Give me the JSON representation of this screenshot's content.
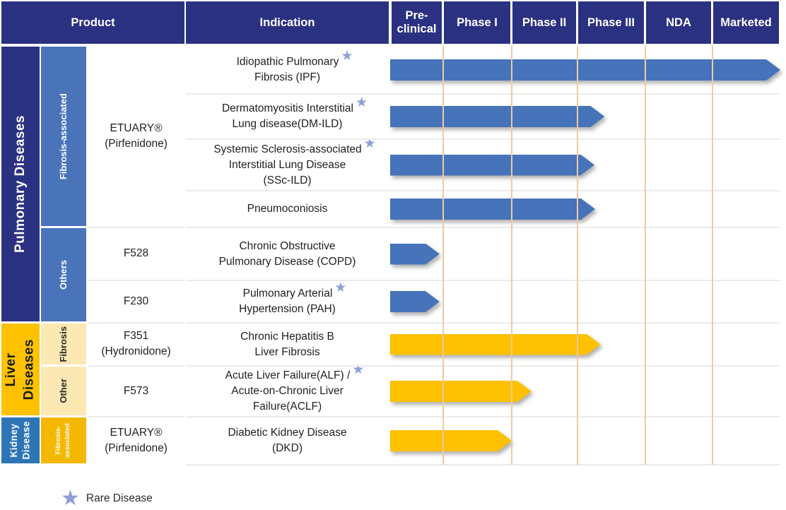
{
  "header": {
    "product_label": "Product",
    "indication_label": "Indication",
    "phases": [
      "Pre-\nclinical",
      "Phase I",
      "Phase II",
      "Phase III",
      "NDA",
      "Marketed"
    ]
  },
  "groups": [
    {
      "label": "Pulmonary Diseases",
      "rows": [
        0,
        5
      ],
      "bg": "#2B3181",
      "fg": "#FFFFFF",
      "small": false
    },
    {
      "label": "Liver\nDiseases",
      "rows": [
        6,
        7
      ],
      "bg": "#FCC200",
      "fg": "#1a1a1a",
      "small": false
    },
    {
      "label": "Kidney\nDisease",
      "rows": [
        8,
        8
      ],
      "bg": "#2E75B6",
      "fg": "#FFFFFF",
      "small": true
    }
  ],
  "subgroups": [
    {
      "label": "Fibrosis-associated",
      "rows": [
        0,
        3
      ],
      "bg": "#4A74BA",
      "fg": "#FFFFFF",
      "small": false
    },
    {
      "label": "Others",
      "rows": [
        4,
        5
      ],
      "bg": "#4A74BA",
      "fg": "#FFFFFF",
      "small": false
    },
    {
      "label": "Fibrosis",
      "rows": [
        6,
        6
      ],
      "bg": "#FBE8B3",
      "fg": "#2a2a2a",
      "small": false
    },
    {
      "label": "Other",
      "rows": [
        7,
        7
      ],
      "bg": "#FBE8B3",
      "fg": "#2a2a2a",
      "small": false
    },
    {
      "label": "Fibrosis-\nassociated",
      "rows": [
        8,
        8
      ],
      "bg": "#F5B800",
      "fg": "#FFFFFF",
      "small": true
    }
  ],
  "products": [
    {
      "label": "ETUARY®\n(Pirfenidone)",
      "rows": [
        0,
        3
      ]
    },
    {
      "label": "F528",
      "rows": [
        4,
        4
      ]
    },
    {
      "label": "F230",
      "rows": [
        5,
        5
      ]
    },
    {
      "label": "F351\n(Hydronidone)",
      "rows": [
        6,
        6
      ]
    },
    {
      "label": "F573",
      "rows": [
        7,
        7
      ]
    },
    {
      "label": "ETUARY®\n(Pirfenidone)",
      "rows": [
        8,
        8
      ]
    }
  ],
  "chart_data": {
    "type": "bar",
    "description": "Drug development pipeline; each bar shows the furthest stage reached per indication",
    "phases": [
      "Pre-\nclinical",
      "Phase I",
      "Phase II",
      "Phase III",
      "NDA",
      "Marketed"
    ],
    "rows": [
      {
        "group": "Pulmonary Diseases",
        "subgroup": "Fibrosis-associated",
        "product": "ETUARY® (Pirfenidone)",
        "indication_lines": [
          "Idiopathic Pulmonary",
          "Fibrosis (IPF)"
        ],
        "rare_disease": true,
        "arrow_color": "#4673B9",
        "stage_reached": "Marketed",
        "stage_fraction": 1.0
      },
      {
        "group": "Pulmonary Diseases",
        "subgroup": "Fibrosis-associated",
        "product": "ETUARY® (Pirfenidone)",
        "indication_lines": [
          "Dermatomyositis Interstitial",
          "Lung disease(DM-ILD)"
        ],
        "rare_disease": true,
        "arrow_color": "#4673B9",
        "stage_reached": "Phase III",
        "stage_fraction": 0.4
      },
      {
        "group": "Pulmonary Diseases",
        "subgroup": "Fibrosis-associated",
        "product": "ETUARY® (Pirfenidone)",
        "indication_lines": [
          "Systemic Sclerosis-associated",
          "Interstitial Lung Disease",
          "(SSc-ILD)"
        ],
        "rare_disease": true,
        "arrow_color": "#4673B9",
        "stage_reached": "Phase III",
        "stage_fraction": 0.25
      },
      {
        "group": "Pulmonary Diseases",
        "subgroup": "Fibrosis-associated",
        "product": "ETUARY® (Pirfenidone)",
        "indication_lines": [
          "Pneumoconiosis"
        ],
        "rare_disease": false,
        "arrow_color": "#4673B9",
        "stage_reached": "Phase III",
        "stage_fraction": 0.26
      },
      {
        "group": "Pulmonary Diseases",
        "subgroup": "Others",
        "product": "F528",
        "indication_lines": [
          "Chronic Obstructive",
          "Pulmonary Disease (COPD)"
        ],
        "rare_disease": false,
        "arrow_color": "#4673B9",
        "stage_reached": "Pre-\nclinical",
        "stage_fraction": 0.93
      },
      {
        "group": "Pulmonary Diseases",
        "subgroup": "Others",
        "product": "F230",
        "indication_lines": [
          "Pulmonary Arterial",
          "Hypertension (PAH)"
        ],
        "rare_disease": true,
        "arrow_color": "#4673B9",
        "stage_reached": "Pre-\nclinical",
        "stage_fraction": 0.93
      },
      {
        "group": "Liver Diseases",
        "subgroup": "Fibrosis",
        "product": "F351 (Hydronidone)",
        "indication_lines": [
          "Chronic Hepatitis B",
          "Liver Fibrosis"
        ],
        "rare_disease": false,
        "arrow_color": "#FDC101",
        "stage_reached": "Phase III",
        "stage_fraction": 0.34
      },
      {
        "group": "Liver Diseases",
        "subgroup": "Other",
        "product": "F573",
        "indication_lines": [
          "Acute Liver Failure(ALF) /",
          "Acute-on-Chronic Liver",
          "Failure(ACLF)"
        ],
        "rare_disease": true,
        "arrow_color": "#FDC101",
        "stage_reached": "Phase II",
        "stage_fraction": 0.3
      },
      {
        "group": "Kidney Disease",
        "subgroup": "Fibrosis-associated",
        "product": "ETUARY® (Pirfenidone)",
        "indication_lines": [
          "Diabetic Kidney Disease",
          "(DKD)"
        ],
        "rare_disease": false,
        "arrow_color": "#FDC101",
        "stage_reached": "Phase I",
        "stage_fraction": 1.0
      }
    ]
  },
  "legend": {
    "star_label": "Rare Disease"
  },
  "colors": {
    "header_navy": "#2B3181",
    "subgroup_blue": "#4A74BA",
    "arrow_blue": "#4673B9",
    "group_gold": "#FCC200",
    "arrow_gold": "#FDC101",
    "kidney_blue": "#2E75B6",
    "cream": "#FBE8B3",
    "gridline_peach": "#F0C9A2",
    "row_separator": "#E9ECE8",
    "star_blue": "#8C9FD6"
  }
}
